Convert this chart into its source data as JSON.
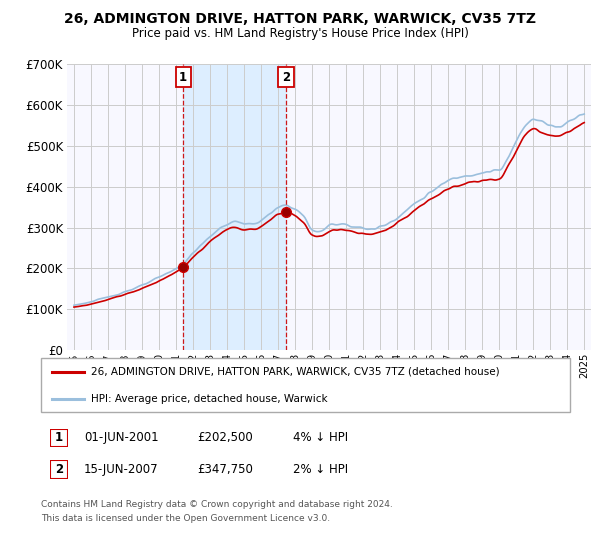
{
  "title": "26, ADMINGTON DRIVE, HATTON PARK, WARWICK, CV35 7TZ",
  "subtitle": "Price paid vs. HM Land Registry's House Price Index (HPI)",
  "legend_line1": "26, ADMINGTON DRIVE, HATTON PARK, WARWICK, CV35 7TZ (detached house)",
  "legend_line2": "HPI: Average price, detached house, Warwick",
  "ann1_label": "1",
  "ann1_date": "01-JUN-2001",
  "ann1_price": "£202,500",
  "ann1_hpi": "4% ↓ HPI",
  "ann1_x": 2001.42,
  "ann2_label": "2",
  "ann2_date": "15-JUN-2007",
  "ann2_price": "£347,750",
  "ann2_hpi": "2% ↓ HPI",
  "ann2_x": 2007.46,
  "footnote_line1": "Contains HM Land Registry data © Crown copyright and database right 2024.",
  "footnote_line2": "This data is licensed under the Open Government Licence v3.0.",
  "red_color": "#cc0000",
  "blue_color": "#9bbfdd",
  "shade_color": "#ddeeff",
  "background_color": "#ffffff",
  "plot_bg_color": "#f8f8ff",
  "grid_color": "#cccccc",
  "ylim": [
    0,
    700000
  ],
  "yticks": [
    0,
    100000,
    200000,
    300000,
    400000,
    500000,
    600000,
    700000
  ],
  "ytick_labels": [
    "£0",
    "£100K",
    "£200K",
    "£300K",
    "£400K",
    "£500K",
    "£600K",
    "£700K"
  ],
  "xlim_min": 1994.6,
  "xlim_max": 2025.4
}
